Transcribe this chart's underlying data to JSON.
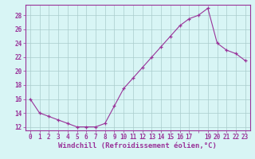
{
  "x": [
    0,
    1,
    2,
    3,
    4,
    5,
    6,
    7,
    8,
    9,
    10,
    11,
    12,
    13,
    14,
    15,
    16,
    17,
    18,
    19,
    20,
    21,
    22,
    23
  ],
  "y": [
    16,
    14,
    13.5,
    13,
    12.5,
    12,
    12,
    12,
    12.5,
    15.0,
    17.5,
    19.0,
    20.5,
    22.0,
    23.5,
    25.0,
    26.5,
    27.5,
    28.0,
    29.0,
    24.0,
    23.0,
    22.5,
    21.5
  ],
  "line_color": "#993399",
  "marker_color": "#993399",
  "bg_color": "#d8f5f5",
  "grid_color": "#aacccc",
  "xlabel": "Windchill (Refroidissement éolien,°C)",
  "ylim": [
    11.5,
    29.5
  ],
  "xlim": [
    -0.5,
    23.5
  ],
  "yticks": [
    12,
    14,
    16,
    18,
    20,
    22,
    24,
    26,
    28
  ],
  "xtick_labels": [
    "0",
    "1",
    "2",
    "3",
    "4",
    "5",
    "6",
    "7",
    "8",
    "9",
    "10",
    "11",
    "12",
    "13",
    "14",
    "15",
    "16",
    "17",
    "",
    "19",
    "20",
    "21",
    "22",
    "23"
  ],
  "tick_fontsize": 5.5,
  "xlabel_fontsize": 6.5,
  "label_color": "#993399"
}
